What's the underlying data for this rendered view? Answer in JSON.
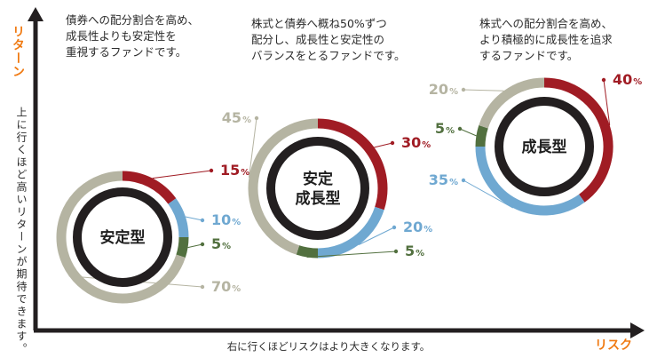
{
  "axes": {
    "y_label": "リターン",
    "y_note": "上に行くほど高いリターンが期待できます。",
    "x_label": "リスク",
    "x_note": "右に行くほどリスクはより大きくなります。"
  },
  "descriptions": {
    "stable": "債券への配分割合を高め、\n成長性よりも安定性を\n重視するファンドです。",
    "balanced": "株式と債券へ概ね50%ずつ\n配分し、成長性と安定性の\nバランスをとるファンドです。",
    "growth": "株式への配分割合を高め、\nより積極的に成長性を追求\nするファンドです。"
  },
  "colors": {
    "stock": "#a01c24",
    "overseas_bond": "#6fa8d1",
    "reit": "#52703f",
    "domestic_bond": "#b5b4a2",
    "core": "#231f20",
    "axis": "#231f20"
  },
  "funds": [
    {
      "id": "stable",
      "name_lines": [
        "安定型"
      ],
      "allocations": [
        {
          "value": 15,
          "label": "15",
          "unit": "%",
          "color_key": "stock"
        },
        {
          "value": 10,
          "label": "10",
          "unit": "%",
          "color_key": "overseas_bond"
        },
        {
          "value": 5,
          "label": "5",
          "unit": "%",
          "color_key": "reit"
        },
        {
          "value": 70,
          "label": "70",
          "unit": "%",
          "color_key": "domestic_bond"
        }
      ]
    },
    {
      "id": "balanced",
      "name_lines": [
        "安定",
        "成長型"
      ],
      "allocations": [
        {
          "value": 30,
          "label": "30",
          "unit": "%",
          "color_key": "stock"
        },
        {
          "value": 20,
          "label": "20",
          "unit": "%",
          "color_key": "overseas_bond"
        },
        {
          "value": 5,
          "label": "5",
          "unit": "%",
          "color_key": "reit"
        },
        {
          "value": 45,
          "label": "45",
          "unit": "%",
          "color_key": "domestic_bond"
        }
      ]
    },
    {
      "id": "growth",
      "name_lines": [
        "成長型"
      ],
      "allocations": [
        {
          "value": 40,
          "label": "40",
          "unit": "%",
          "color_key": "stock"
        },
        {
          "value": 35,
          "label": "35",
          "unit": "%",
          "color_key": "overseas_bond"
        },
        {
          "value": 5,
          "label": "5",
          "unit": "%",
          "color_key": "reit"
        },
        {
          "value": 20,
          "label": "20",
          "unit": "%",
          "color_key": "domestic_bond"
        }
      ]
    }
  ]
}
